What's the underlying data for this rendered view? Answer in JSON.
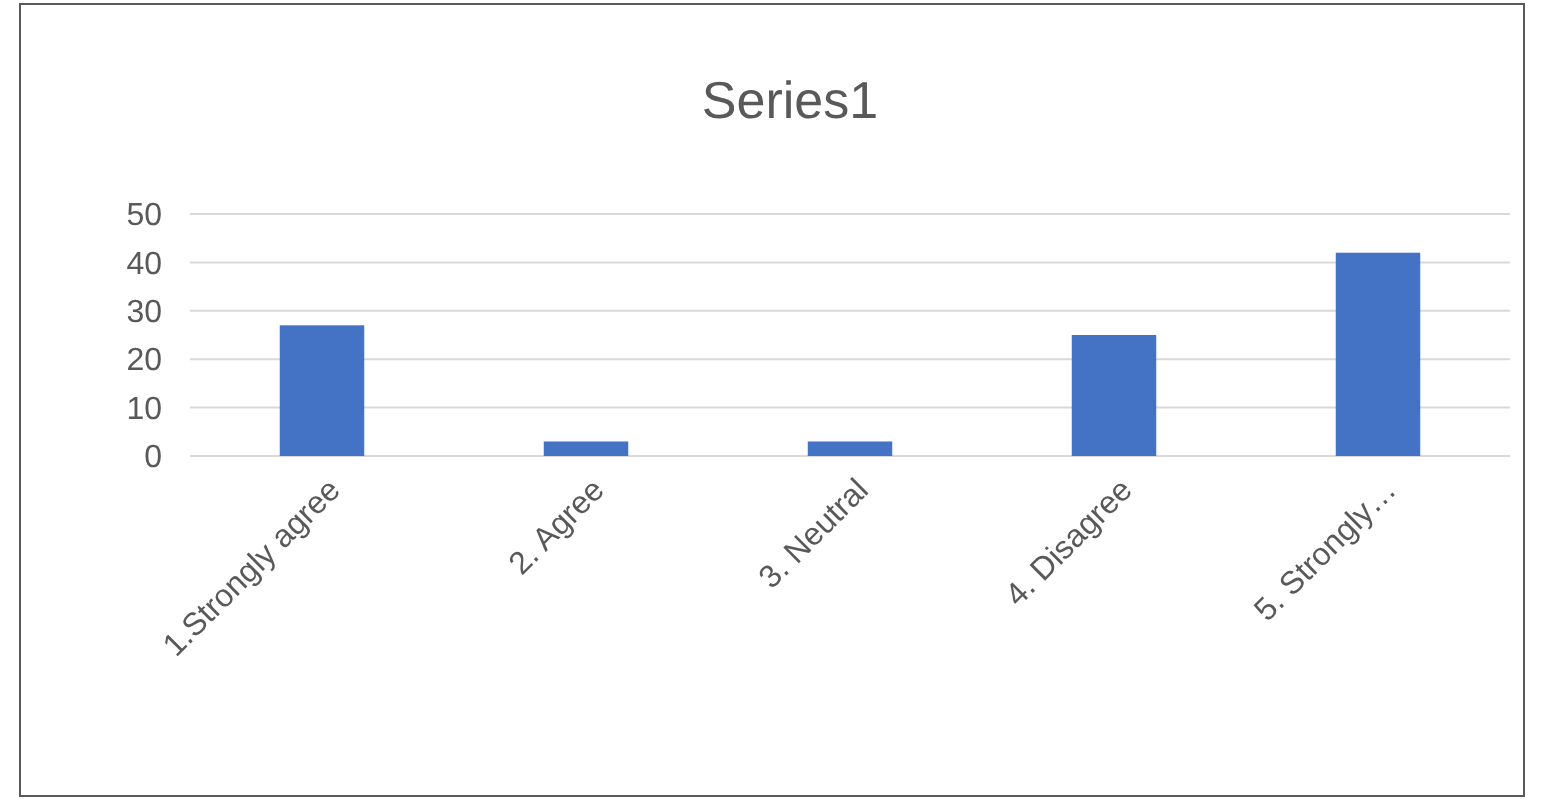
{
  "chart_data": {
    "type": "bar",
    "title": "Series1",
    "categories": [
      "1.Strongly agree",
      "2. Agree",
      "3. Neutral",
      "4. Disagree",
      "5. Strongly…"
    ],
    "values": [
      27,
      3,
      3,
      25,
      42
    ],
    "color": "#4472c4",
    "ylim": [
      0,
      50
    ],
    "yticks": [
      0,
      10,
      20,
      30,
      40,
      50
    ],
    "grid": "y"
  }
}
